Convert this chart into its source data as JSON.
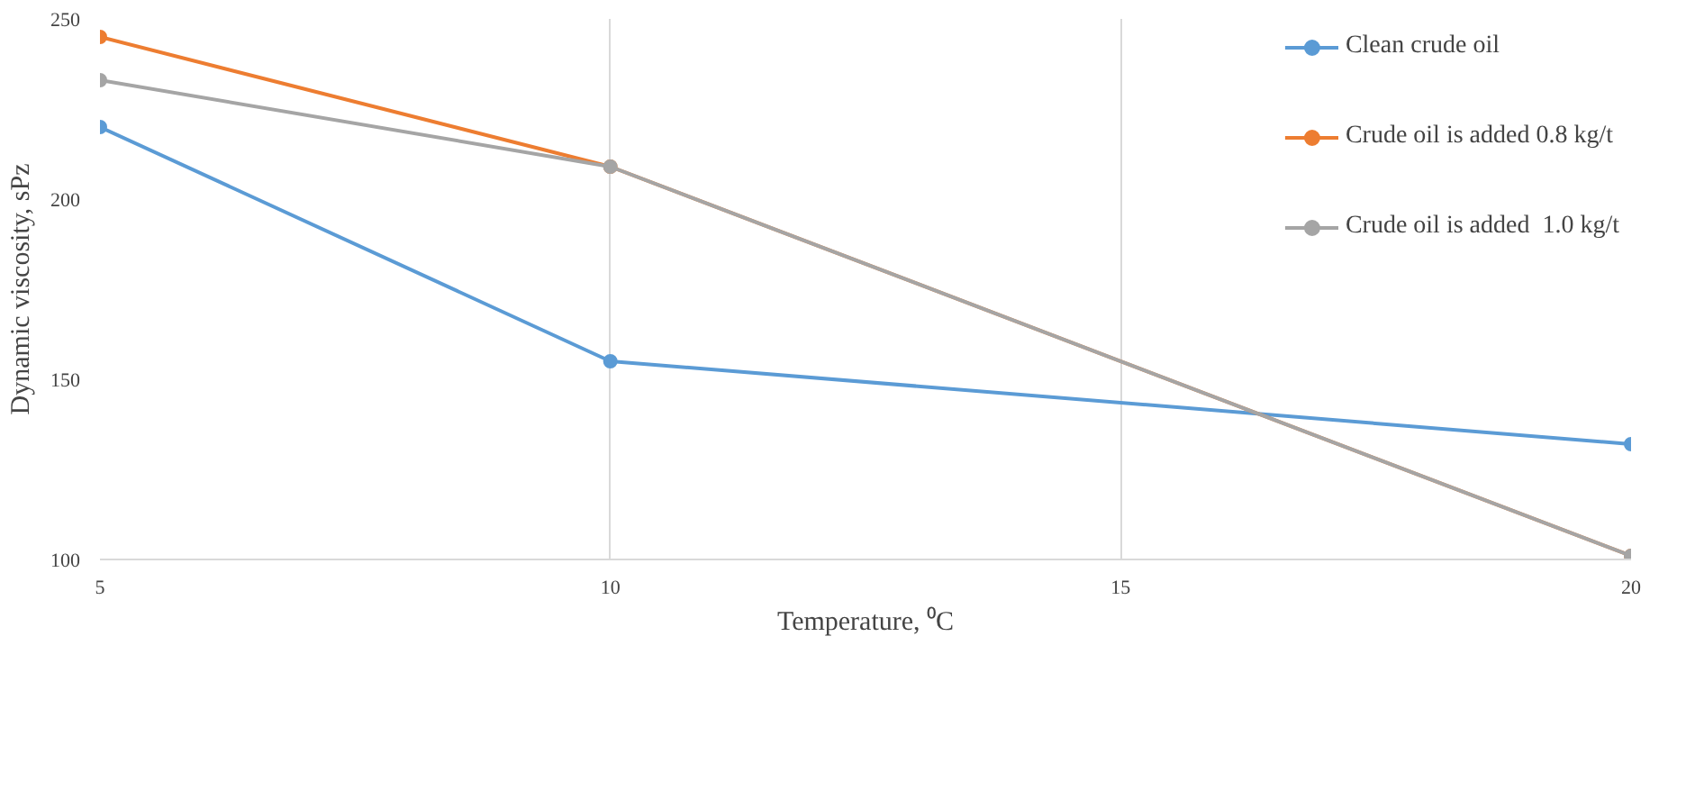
{
  "chart_data": {
    "type": "line",
    "xlabel": "Temperature, ⁰C",
    "ylabel": "Dynamic viscosity, sPz",
    "xlim": [
      5,
      20
    ],
    "xticks": [
      5,
      10,
      15,
      20
    ],
    "ylim": [
      100,
      250
    ],
    "yticks": [
      100,
      150,
      200,
      250
    ],
    "x": [
      5,
      10,
      20
    ],
    "series": [
      {
        "name": "Clean crude oil",
        "color": "#5b9bd5",
        "values": [
          220,
          155,
          132
        ]
      },
      {
        "name": "Crude oil is added 0.8 kg/t",
        "color": "#ed7d31",
        "values": [
          245,
          209,
          101
        ]
      },
      {
        "name": "Crude oil is added  1.0 kg/t",
        "color": "#a5a5a5",
        "values": [
          233,
          209,
          101
        ]
      }
    ],
    "grid": "x",
    "legend": "top right",
    "marker": "circle",
    "line_style": "solid"
  }
}
